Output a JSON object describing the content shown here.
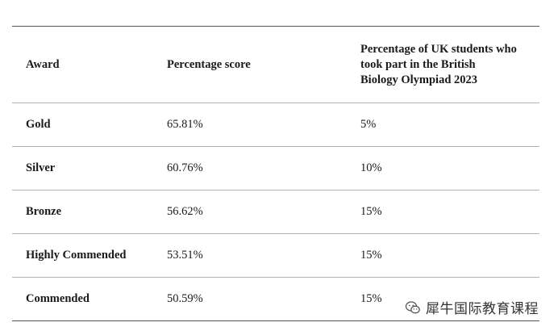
{
  "table": {
    "headers": {
      "award": "Award",
      "score": "Percentage score",
      "percentage": "Percentage of UK students who\ntook part in the British\nBiology Olympiad 2023"
    },
    "rows": [
      {
        "award": "Gold",
        "score": "65.81%",
        "percentage": "5%"
      },
      {
        "award": "Silver",
        "score": "60.76%",
        "percentage": "10%"
      },
      {
        "award": "Bronze",
        "score": "56.62%",
        "percentage": "15%"
      },
      {
        "award": "Highly Commended",
        "score": "53.51%",
        "percentage": "15%"
      },
      {
        "award": "Commended",
        "score": "50.59%",
        "percentage": "15%"
      }
    ]
  },
  "watermark": {
    "icon": "wechat-icon",
    "text": "犀牛国际教育课程"
  }
}
